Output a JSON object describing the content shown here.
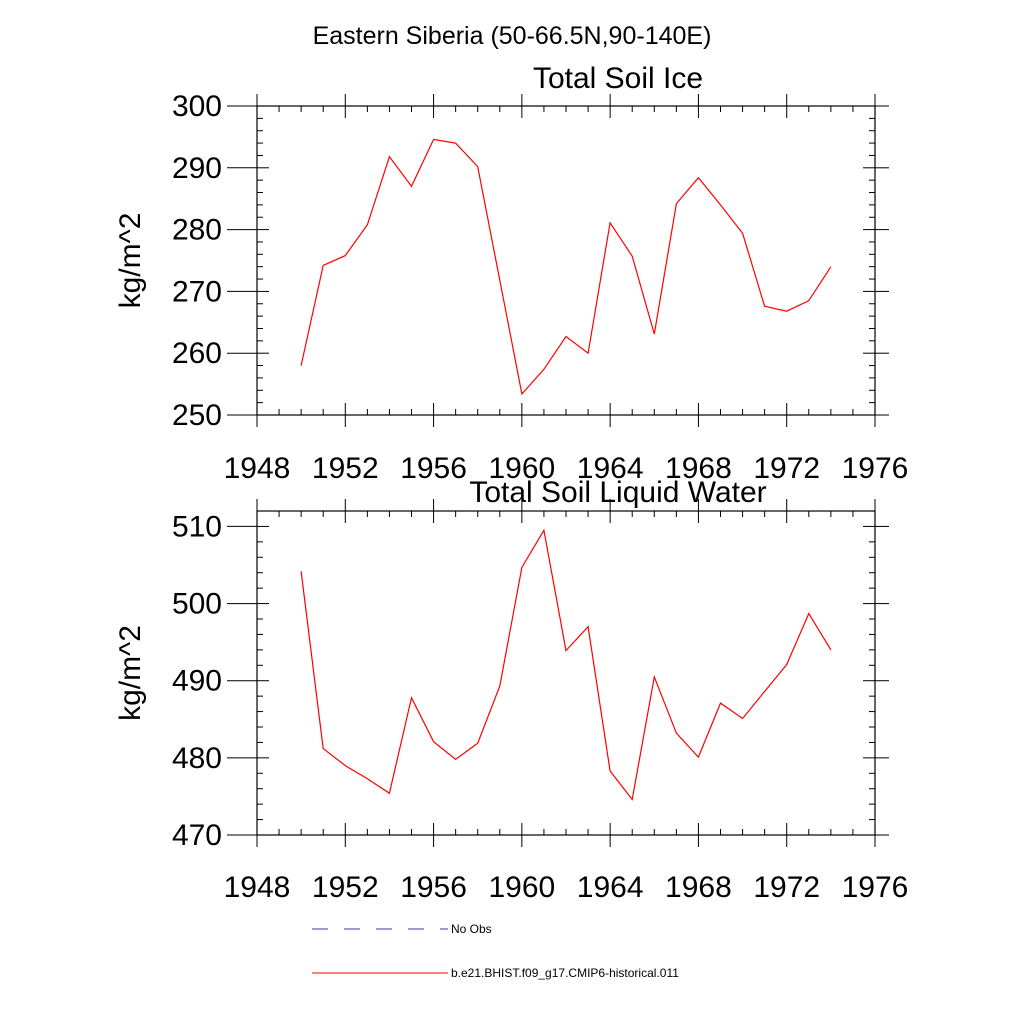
{
  "figure": {
    "suptitle": "Eastern Siberia (50-66.5N,90-140E)"
  },
  "legend": {
    "entries": [
      {
        "label": "No Obs",
        "color": "#3a3a8c",
        "style": "dashed"
      },
      {
        "label": "b.e21.BHIST.f09_g17.CMIP6-historical.011",
        "color": "#ff0000",
        "style": "solid"
      }
    ],
    "placement": "bottom"
  },
  "chart_data": [
    {
      "type": "line",
      "title": "Total Soil Ice",
      "xlabel": "",
      "ylabel": "kg/m^2",
      "xlim": [
        1948,
        1976
      ],
      "ylim": [
        250,
        300
      ],
      "xticks": [
        1948,
        1952,
        1956,
        1960,
        1964,
        1968,
        1972,
        1976
      ],
      "yticks": [
        250,
        260,
        270,
        280,
        290,
        300
      ],
      "grid": false,
      "series": [
        {
          "name": "b.e21.BHIST.f09_g17.CMIP6-historical.011",
          "color": "#ff0000",
          "x": [
            1950,
            1951,
            1952,
            1953,
            1954,
            1955,
            1956,
            1957,
            1958,
            1959,
            1960,
            1961,
            1962,
            1963,
            1964,
            1965,
            1966,
            1967,
            1968,
            1969,
            1970,
            1971,
            1972,
            1973,
            1974
          ],
          "y": [
            258.0,
            274.2,
            275.8,
            280.8,
            291.8,
            287.0,
            294.6,
            294.0,
            290.2,
            271.8,
            253.4,
            257.4,
            262.7,
            260.0,
            281.1,
            275.7,
            263.1,
            284.2,
            288.4,
            284.0,
            279.4,
            267.6,
            266.8,
            268.5,
            274.0
          ]
        }
      ]
    },
    {
      "type": "line",
      "title": "Total Soil Liquid Water",
      "xlabel": "",
      "ylabel": "kg/m^2",
      "xlim": [
        1948,
        1976
      ],
      "ylim": [
        470,
        512
      ],
      "xticks": [
        1948,
        1952,
        1956,
        1960,
        1964,
        1968,
        1972,
        1976
      ],
      "yticks": [
        470,
        480,
        490,
        500,
        510
      ],
      "grid": false,
      "series": [
        {
          "name": "b.e21.BHIST.f09_g17.CMIP6-historical.011",
          "color": "#ff0000",
          "x": [
            1950,
            1951,
            1952,
            1953,
            1954,
            1955,
            1956,
            1957,
            1958,
            1959,
            1960,
            1961,
            1962,
            1963,
            1964,
            1965,
            1966,
            1967,
            1968,
            1969,
            1970,
            1971,
            1972,
            1973,
            1974
          ],
          "y": [
            504.2,
            481.2,
            479.0,
            477.3,
            475.4,
            487.8,
            482.1,
            479.8,
            481.9,
            489.3,
            504.7,
            509.5,
            493.9,
            497.0,
            478.3,
            474.6,
            490.5,
            483.2,
            480.1,
            487.1,
            485.1,
            488.6,
            492.1,
            498.7,
            494.0
          ]
        }
      ]
    }
  ]
}
